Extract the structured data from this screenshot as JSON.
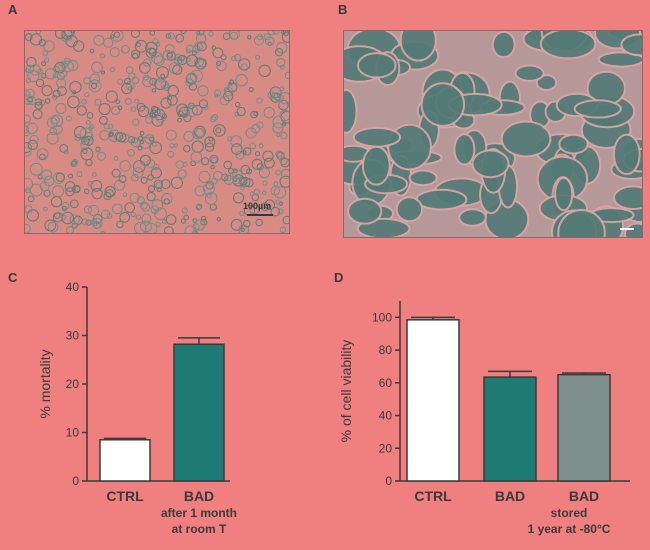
{
  "panels": {
    "A": {
      "letter": "A",
      "scale_bar_label": "100µm"
    },
    "B": {
      "letter": "B"
    },
    "C": {
      "letter": "C"
    },
    "D": {
      "letter": "D"
    }
  },
  "colors": {
    "background": "#f08080",
    "teal": "#1e7a74",
    "gray": "#7f8f8d",
    "white": "#ffffff",
    "axis": "#3a3a3a"
  },
  "chart_data": [
    {
      "panel": "C",
      "type": "bar",
      "ylabel": "% mortality",
      "ylim": [
        0,
        40
      ],
      "yticks": [
        0,
        10,
        20,
        30,
        40
      ],
      "categories": [
        {
          "label": "CTRL",
          "sublabels": []
        },
        {
          "label": "BAD",
          "sublabels": [
            "after 1 month",
            "at room T"
          ]
        }
      ],
      "values": [
        8.5,
        28.2
      ],
      "errors": [
        0.3,
        1.3
      ],
      "bar_colors": [
        "#ffffff",
        "#1e7a74"
      ]
    },
    {
      "panel": "D",
      "type": "bar",
      "ylabel": "% of cell viability",
      "ylim": [
        0,
        110
      ],
      "yticks": [
        0,
        20,
        40,
        60,
        80,
        100
      ],
      "categories": [
        {
          "label": "CTRL",
          "sublabels": []
        },
        {
          "label": "BAD",
          "sublabels": []
        },
        {
          "label": "BAD",
          "sublabels": [
            "stored",
            "1 year at -80°C"
          ]
        }
      ],
      "values": [
        98.5,
        63.5,
        65.0
      ],
      "errors": [
        1.5,
        3.5,
        1.0
      ],
      "bar_colors": [
        "#ffffff",
        "#1e7a74",
        "#7f8f8d"
      ]
    }
  ]
}
